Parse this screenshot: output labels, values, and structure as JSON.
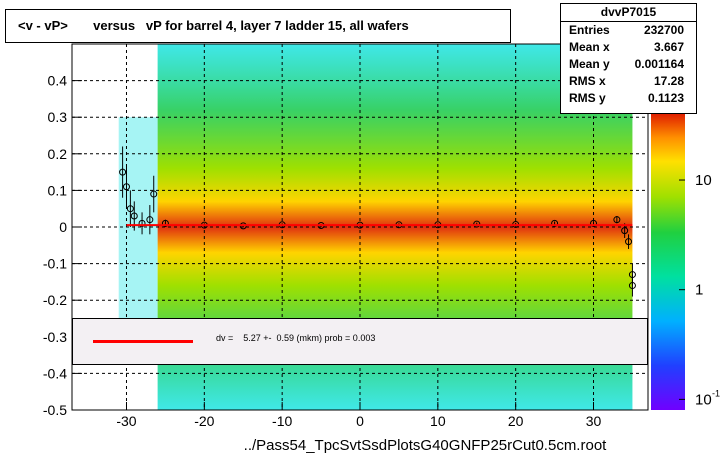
{
  "title": "<v - vP>       versus   vP for barrel 4, layer 7 ladder 15, all wafers",
  "footer": "../Pass54_TpcSvtSsdPlotsG40GNFP25rCut0.5cm.root",
  "stats": {
    "name": "dvvP7015",
    "rows": [
      {
        "label": "Entries",
        "value": "232700"
      },
      {
        "label": "Mean x",
        "value": "3.667"
      },
      {
        "label": "Mean y",
        "value": "0.001164"
      },
      {
        "label": "RMS x",
        "value": "17.28"
      },
      {
        "label": "RMS y",
        "value": "0.1123"
      }
    ]
  },
  "fit": {
    "text": "dv =    5.27 +-  0.59 (mkm) prob = 0.003",
    "line_color": "#ff0000"
  },
  "colors": {
    "plot_bg": "#ffffff",
    "band_core": "#e03010",
    "band_mid": "#ffd400",
    "band_outer": "#22cc55",
    "band_edge": "#00e0e0",
    "marker": "#000000"
  },
  "chart_data": {
    "type": "heatmap",
    "xlim": [
      -37,
      37
    ],
    "ylim": [
      -0.5,
      0.5
    ],
    "x_ticks": [
      -30,
      -20,
      -10,
      0,
      10,
      20,
      30
    ],
    "y_ticks": [
      -0.5,
      -0.4,
      -0.3,
      -0.2,
      -0.1,
      0,
      0.1,
      0.2,
      0.3,
      0.4
    ],
    "y_tick_labels": [
      "-0.5",
      "-0.4",
      "-0.3",
      "-0.2",
      "-0.1",
      "0",
      "0.1",
      "0.2",
      "0.3",
      "0.4"
    ],
    "grid": true,
    "fill_x_range": [
      -26,
      35
    ],
    "colorbar": {
      "scale": "log",
      "labels": [
        {
          "text": "10",
          "value": 10
        },
        {
          "text": "1",
          "value": 1
        },
        {
          "text": "10",
          "value": 0.1,
          "sup": "-1"
        }
      ]
    },
    "profile": [
      {
        "x": -30.5,
        "y": 0.15,
        "err": 0.07
      },
      {
        "x": -30.0,
        "y": 0.11,
        "err": 0.06
      },
      {
        "x": -29.5,
        "y": 0.05,
        "err": 0.05
      },
      {
        "x": -29.0,
        "y": 0.03,
        "err": 0.04
      },
      {
        "x": -28.0,
        "y": 0.01,
        "err": 0.03
      },
      {
        "x": -27.0,
        "y": 0.02,
        "err": 0.04
      },
      {
        "x": -26.5,
        "y": 0.09,
        "err": 0.05
      },
      {
        "x": -25.0,
        "y": 0.01,
        "err": 0.01
      },
      {
        "x": -20.0,
        "y": 0.005,
        "err": 0.005
      },
      {
        "x": -15.0,
        "y": 0.003,
        "err": 0.004
      },
      {
        "x": -10.0,
        "y": 0.006,
        "err": 0.004
      },
      {
        "x": -5.0,
        "y": 0.004,
        "err": 0.004
      },
      {
        "x": 0.0,
        "y": 0.005,
        "err": 0.004
      },
      {
        "x": 5.0,
        "y": 0.006,
        "err": 0.004
      },
      {
        "x": 10.0,
        "y": 0.006,
        "err": 0.004
      },
      {
        "x": 15.0,
        "y": 0.008,
        "err": 0.004
      },
      {
        "x": 20.0,
        "y": 0.007,
        "err": 0.004
      },
      {
        "x": 25.0,
        "y": 0.01,
        "err": 0.005
      },
      {
        "x": 30.0,
        "y": 0.01,
        "err": 0.006
      },
      {
        "x": 33.0,
        "y": 0.02,
        "err": 0.01
      },
      {
        "x": 34.0,
        "y": -0.01,
        "err": 0.02
      },
      {
        "x": 34.5,
        "y": -0.04,
        "err": 0.02
      },
      {
        "x": 35.0,
        "y": -0.13,
        "err": 0.03
      },
      {
        "x": 35.0,
        "y": -0.16,
        "err": 0.03
      }
    ],
    "fit_line": {
      "x0": -30,
      "x1": 35,
      "y": 0.00527
    }
  }
}
